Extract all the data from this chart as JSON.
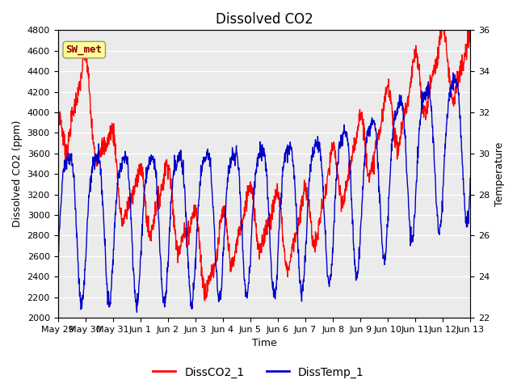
{
  "title": "Dissolved CO2",
  "xlabel": "Time",
  "ylabel_left": "Dissolved CO2 (ppm)",
  "ylabel_right": "Temperature",
  "annotation_text": "SW_met",
  "legend_labels": [
    "DissCO2_1",
    "DissTemp_1"
  ],
  "co2_color": "#FF0000",
  "temp_color": "#0000CC",
  "background_color": "#EBEBEB",
  "ylim_left": [
    2000,
    4800
  ],
  "ylim_right": [
    22,
    36
  ],
  "yticks_left": [
    2000,
    2200,
    2400,
    2600,
    2800,
    3000,
    3200,
    3400,
    3600,
    3800,
    4000,
    4200,
    4400,
    4600,
    4800
  ],
  "yticks_right": [
    22,
    24,
    26,
    28,
    30,
    32,
    34,
    36
  ],
  "xtick_labels": [
    "May 29",
    "May 30",
    "May 31",
    "Jun 1",
    "Jun 2",
    "Jun 3",
    "Jun 4",
    "Jun 5",
    "Jun 6",
    "Jun 7",
    "Jun 8",
    "Jun 9",
    "Jun 10",
    "Jun 11",
    "Jun 12",
    "Jun 13"
  ],
  "title_fontsize": 12,
  "label_fontsize": 9,
  "tick_fontsize": 8,
  "legend_fontsize": 10,
  "line_width": 1.0,
  "figsize": [
    6.4,
    4.8
  ],
  "dpi": 100
}
